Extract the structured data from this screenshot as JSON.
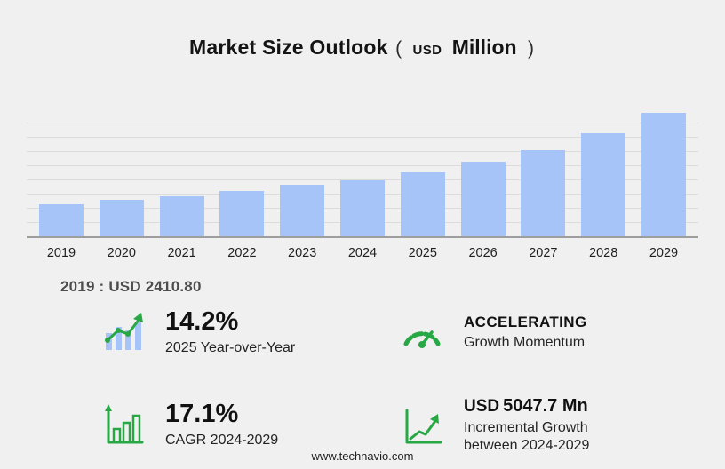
{
  "title": {
    "main": "Market Size Outlook",
    "paren_open": "(",
    "currency": "USD",
    "unit": "Million",
    "paren_close": ")"
  },
  "chart_data": {
    "type": "bar",
    "title": "Market Size Outlook (USD Million)",
    "xlabel": "Year",
    "ylabel": "USD Million",
    "categories": [
      "2019",
      "2020",
      "2021",
      "2022",
      "2023",
      "2024",
      "2025",
      "2026",
      "2027",
      "2028",
      "2029"
    ],
    "values": [
      2410.8,
      2700,
      2980,
      3420,
      3860,
      4200,
      4796,
      5560,
      6480,
      7700,
      9248
    ],
    "ylim": [
      0,
      9250
    ],
    "grid": true,
    "legend": "none",
    "bar_color": "#a6c4f7"
  },
  "annotation": {
    "base_year_note": "2019 : USD  2410.80"
  },
  "stats": {
    "yoy": {
      "value": "14.2%",
      "label": "2025 Year-over-Year"
    },
    "momentum": {
      "title": "ACCELERATING",
      "label": "Growth Momentum"
    },
    "cagr": {
      "value": "17.1%",
      "label": "CAGR 2024-2029"
    },
    "incremental": {
      "currency": "USD",
      "value": "5047.7 Mn",
      "label_line1": "Incremental Growth",
      "label_line2": "between 2024-2029"
    }
  },
  "footer": {
    "url": "www.technavio.com"
  },
  "colors": {
    "accent_green": "#28a745",
    "bar_fill": "#a6c4f7",
    "background": "#f0f0f0"
  }
}
